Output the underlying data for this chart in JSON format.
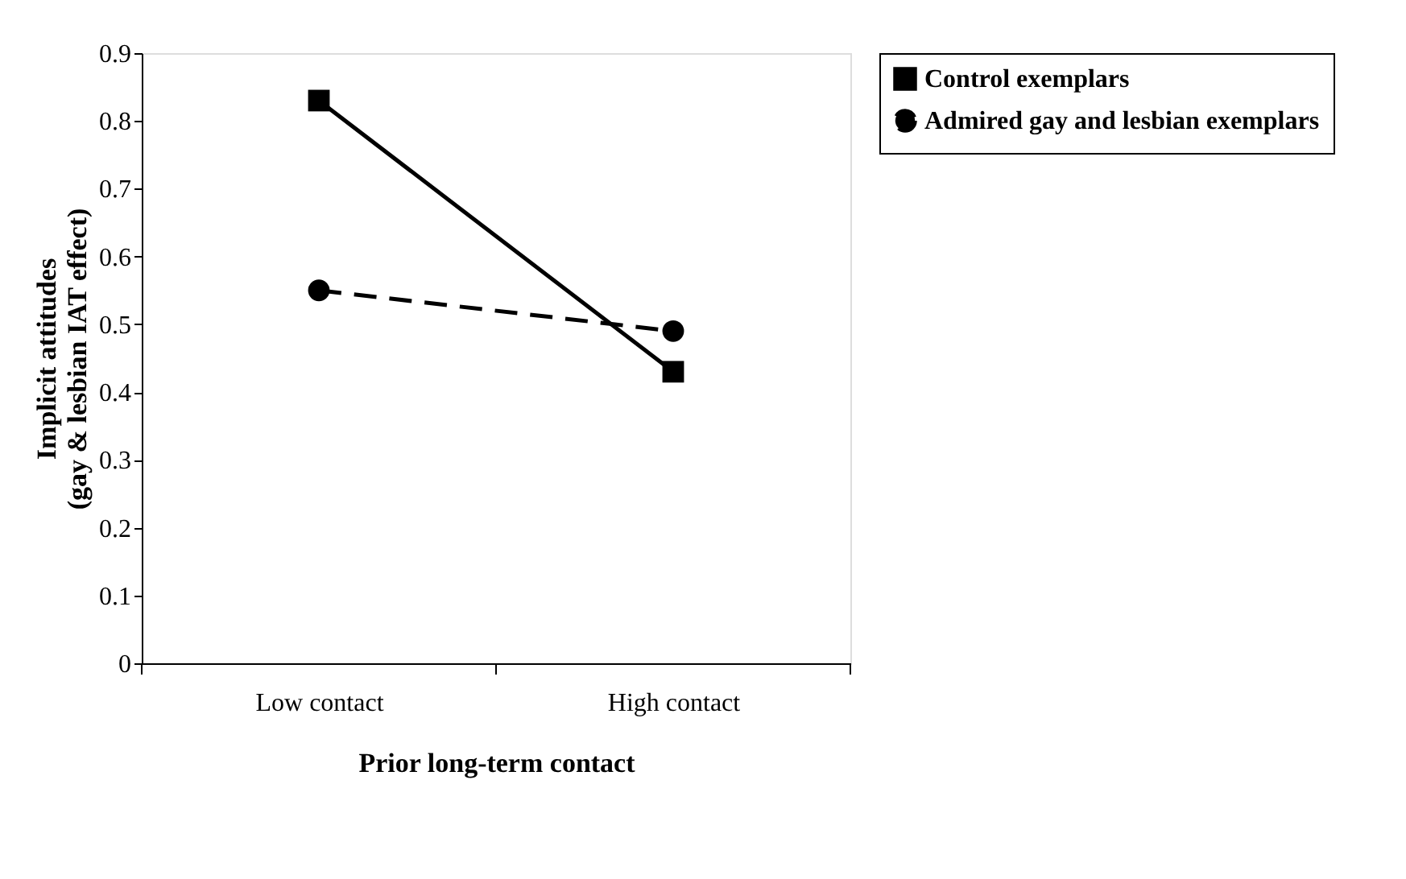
{
  "chart_data": {
    "type": "line",
    "xlabel": "Prior long-term contact",
    "ylabel": "Implicit attitudes (gay & lesbian IAT effect)",
    "categories": [
      "Low contact",
      "High contact"
    ],
    "series": [
      {
        "name": "Control exemplars",
        "color": "#000000",
        "values": [
          0.83,
          0.43
        ],
        "marker": "square",
        "line_style": "solid"
      },
      {
        "name": "Admired gay and lesbian exemplars",
        "color": "#000000",
        "values": [
          0.55,
          0.49
        ],
        "marker": "circle",
        "line_style": "dashed"
      }
    ],
    "ylim": [
      0,
      0.9
    ],
    "yticks": [
      0,
      0.1,
      0.2,
      0.3,
      0.4,
      0.5,
      0.6,
      0.7,
      0.8,
      0.9
    ],
    "grid": false,
    "legend": "right"
  }
}
